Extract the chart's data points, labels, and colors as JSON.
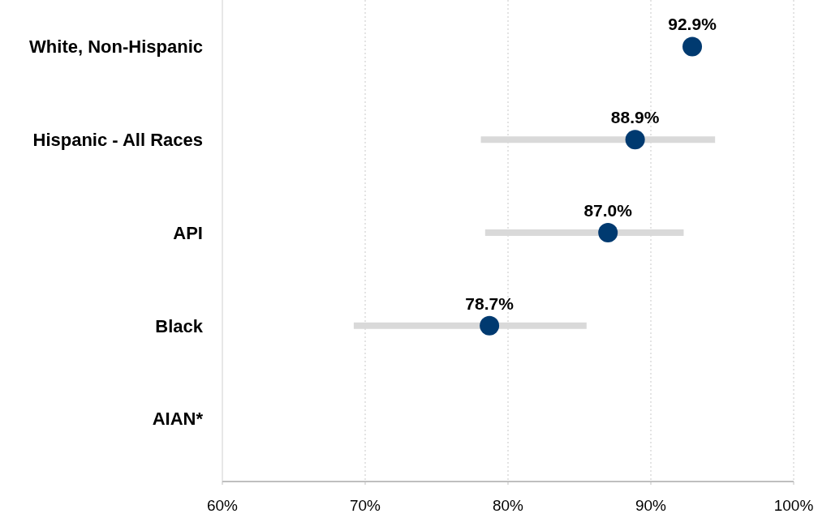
{
  "chart_data": {
    "type": "scatter",
    "orientation": "horizontal",
    "categories": [
      "White, Non-Hispanic",
      "Hispanic - All Races",
      "API",
      "Black",
      "AIAN*"
    ],
    "series": [
      {
        "color": "#003a70",
        "values": [
          92.9,
          88.9,
          87.0,
          78.7,
          null
        ],
        "errors": [
          null,
          [
            78.1,
            94.5
          ],
          [
            78.4,
            92.3
          ],
          [
            69.2,
            85.5
          ],
          null
        ],
        "value_labels": [
          "92.9%",
          "88.9%",
          "87.0%",
          "78.7%",
          null
        ]
      }
    ],
    "xlim": [
      60,
      100
    ],
    "xticks": [
      {
        "value": 60,
        "label": "60%"
      },
      {
        "value": 70,
        "label": "70%"
      },
      {
        "value": 80,
        "label": "80%"
      },
      {
        "value": 90,
        "label": "90%"
      },
      {
        "value": 100,
        "label": "100%"
      }
    ],
    "grid": "x",
    "marker": "circle"
  }
}
